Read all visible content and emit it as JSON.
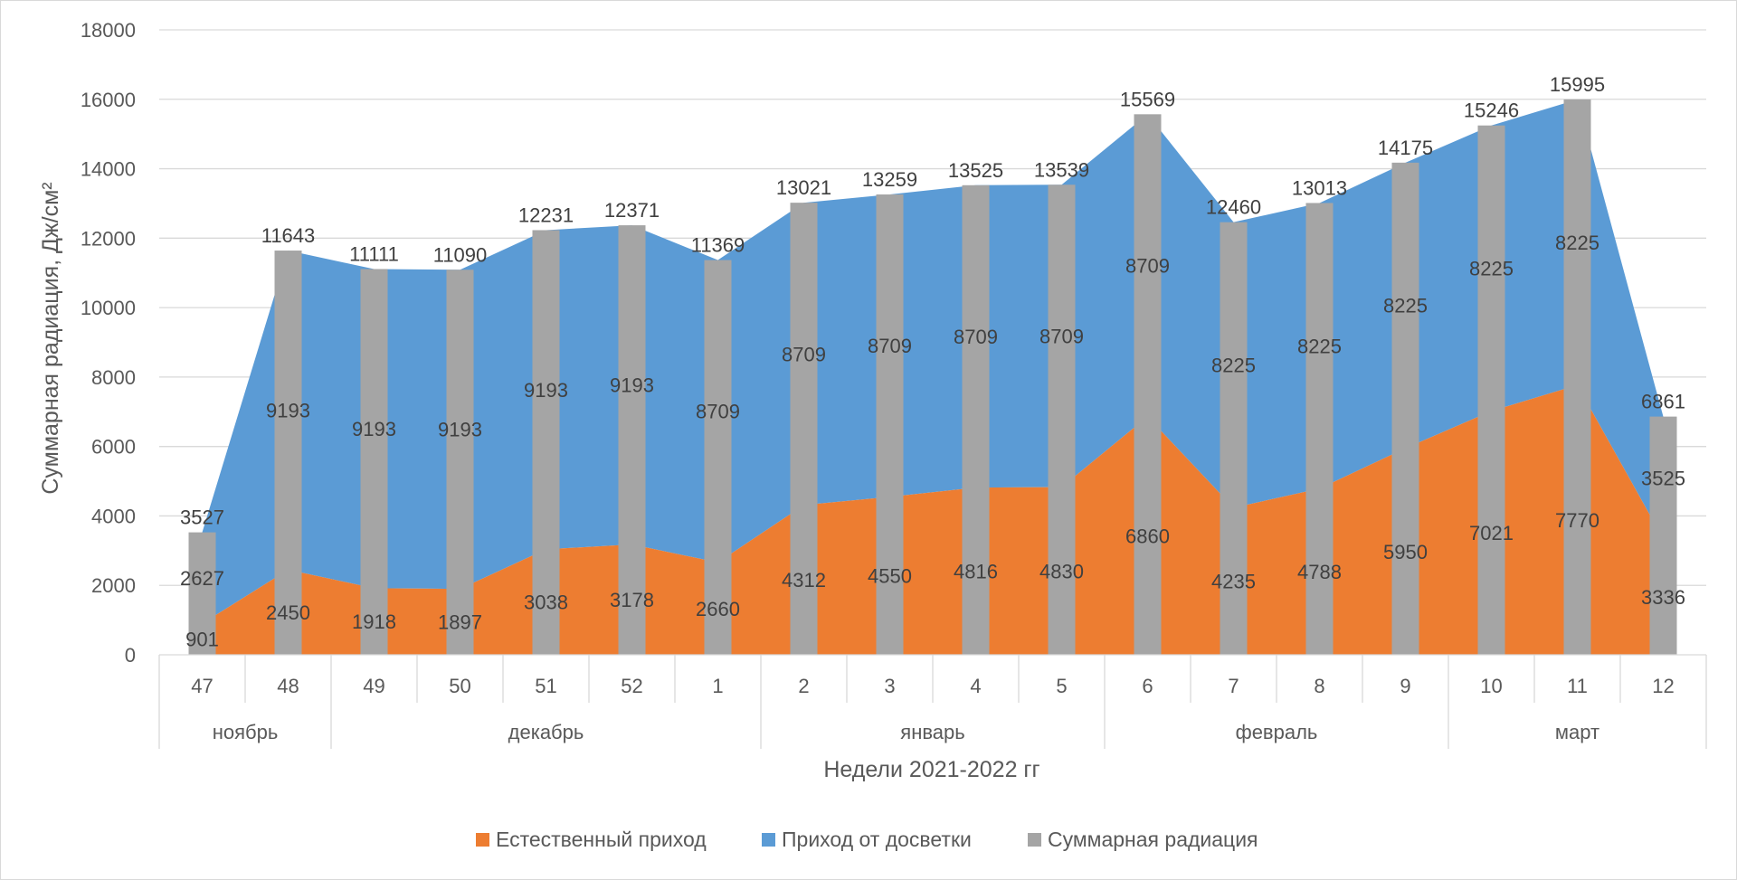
{
  "chart_data": {
    "type": "area",
    "title": "",
    "xlabel": "Недели 2021-2022 гг",
    "ylabel": "Суммарная радиация, Дж/см²",
    "ylim": [
      0,
      18000
    ],
    "y_ticks": [
      "0",
      "2000",
      "4000",
      "6000",
      "8000",
      "10000",
      "12000",
      "14000",
      "16000",
      "18000"
    ],
    "categories": [
      "47",
      "48",
      "49",
      "50",
      "51",
      "52",
      "1",
      "2",
      "3",
      "4",
      "5",
      "6",
      "7",
      "8",
      "9",
      "10",
      "11",
      "12"
    ],
    "month_groups": [
      {
        "label": "ноябрь",
        "count": 2
      },
      {
        "label": "декабрь",
        "count": 5
      },
      {
        "label": "январь",
        "count": 4
      },
      {
        "label": "февраль",
        "count": 4
      },
      {
        "label": "март",
        "count": 3
      }
    ],
    "series": [
      {
        "name": "Естественный приход",
        "type": "stacked-area",
        "color": "#ed7d31",
        "values": [
          901,
          2450,
          1918,
          1897,
          3038,
          3178,
          2660,
          4312,
          4550,
          4816,
          4830,
          6860,
          4235,
          4788,
          5950,
          7021,
          7770,
          3336
        ]
      },
      {
        "name": "Приход от досветки",
        "type": "stacked-area",
        "color": "#5b9bd5",
        "values": [
          2627,
          9193,
          9193,
          9193,
          9193,
          9193,
          8709,
          8709,
          8709,
          8709,
          8709,
          8709,
          8225,
          8225,
          8225,
          8225,
          8225,
          3525
        ]
      },
      {
        "name": "Суммарная радиация",
        "type": "column",
        "color": "#a5a5a5",
        "values": [
          3527,
          11643,
          11111,
          11090,
          12231,
          12371,
          11369,
          13021,
          13259,
          13525,
          13539,
          15569,
          12460,
          13013,
          14175,
          15246,
          15995,
          6861
        ]
      }
    ],
    "legend_position": "bottom",
    "grid": true
  }
}
